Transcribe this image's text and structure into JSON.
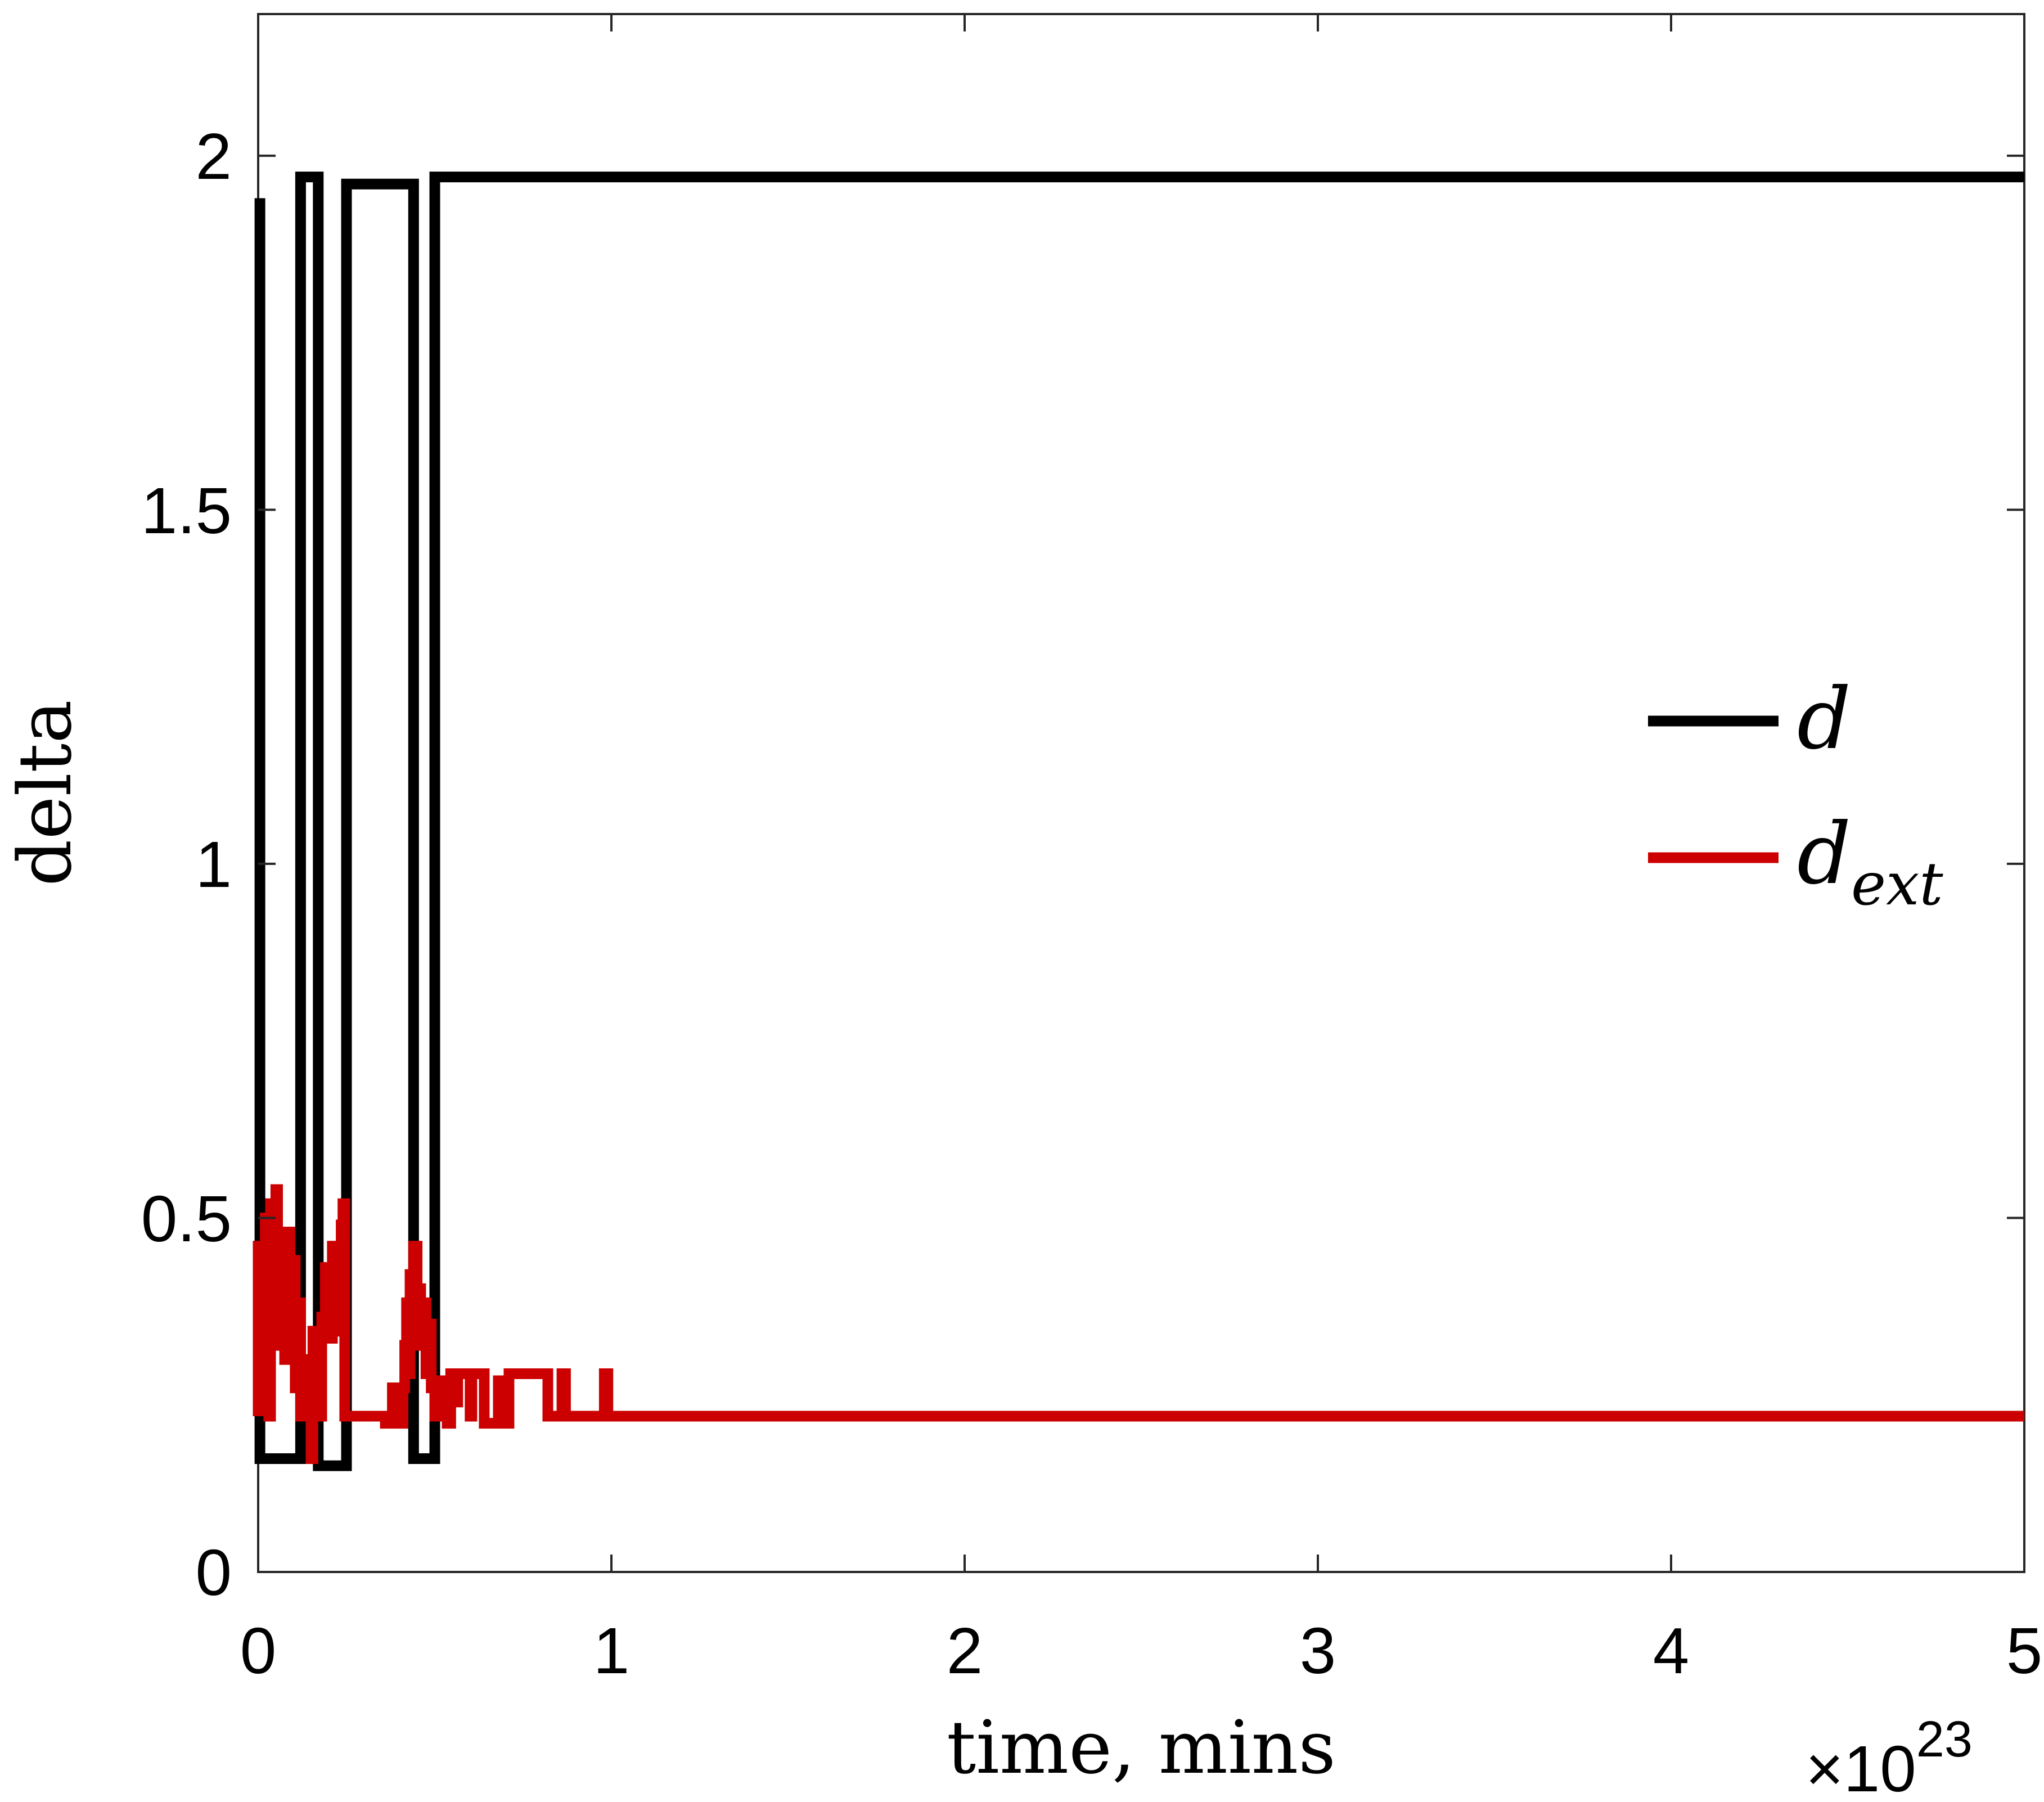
{
  "chart_data": {
    "type": "line",
    "title": "",
    "xlabel": "time, mins",
    "ylabel": "delta",
    "x_multiplier": "×10^23",
    "x_multiplier_base": "×10",
    "x_multiplier_exp": "23",
    "xlim": [
      0,
      5
    ],
    "ylim": [
      0,
      2.2
    ],
    "x_ticks": [
      0,
      1,
      2,
      3,
      4,
      5
    ],
    "x_tick_labels": [
      "0",
      "1",
      "2",
      "3",
      "4",
      "5"
    ],
    "y_ticks": [
      0,
      0.5,
      1,
      1.5,
      2
    ],
    "y_tick_labels": [
      "0",
      "0.5",
      "1",
      "1.5",
      "2"
    ],
    "grid": false,
    "legend_position": "right",
    "series": [
      {
        "name": "d",
        "color": "#000000",
        "points": [
          [
            0.005,
            1.94
          ],
          [
            0.005,
            0.16
          ],
          [
            0.12,
            0.16
          ],
          [
            0.12,
            1.97
          ],
          [
            0.17,
            1.97
          ],
          [
            0.17,
            0.15
          ],
          [
            0.25,
            0.15
          ],
          [
            0.25,
            1.96
          ],
          [
            0.44,
            1.96
          ],
          [
            0.44,
            0.16
          ],
          [
            0.5,
            0.16
          ],
          [
            0.5,
            1.97
          ],
          [
            5.0,
            1.97
          ]
        ]
      },
      {
        "name": "d_ext",
        "label_main": "d",
        "label_sub": "ext",
        "color": "#cc0000",
        "points": [
          [
            0.0,
            0.22
          ],
          [
            0.0,
            0.46
          ],
          [
            0.01,
            0.46
          ],
          [
            0.01,
            0.28
          ],
          [
            0.02,
            0.28
          ],
          [
            0.02,
            0.5
          ],
          [
            0.03,
            0.5
          ],
          [
            0.03,
            0.22
          ],
          [
            0.035,
            0.22
          ],
          [
            0.035,
            0.52
          ],
          [
            0.045,
            0.52
          ],
          [
            0.045,
            0.36
          ],
          [
            0.05,
            0.36
          ],
          [
            0.05,
            0.54
          ],
          [
            0.055,
            0.54
          ],
          [
            0.055,
            0.32
          ],
          [
            0.065,
            0.32
          ],
          [
            0.065,
            0.43
          ],
          [
            0.075,
            0.43
          ],
          [
            0.075,
            0.3
          ],
          [
            0.08,
            0.3
          ],
          [
            0.08,
            0.48
          ],
          [
            0.09,
            0.48
          ],
          [
            0.09,
            0.32
          ],
          [
            0.095,
            0.32
          ],
          [
            0.095,
            0.44
          ],
          [
            0.105,
            0.44
          ],
          [
            0.105,
            0.26
          ],
          [
            0.115,
            0.26
          ],
          [
            0.115,
            0.38
          ],
          [
            0.12,
            0.38
          ],
          [
            0.12,
            0.22
          ],
          [
            0.14,
            0.22
          ],
          [
            0.14,
            0.3
          ],
          [
            0.145,
            0.3
          ],
          [
            0.145,
            0.22
          ],
          [
            0.15,
            0.22
          ],
          [
            0.15,
            0.16
          ],
          [
            0.155,
            0.16
          ],
          [
            0.155,
            0.34
          ],
          [
            0.16,
            0.34
          ],
          [
            0.16,
            0.22
          ],
          [
            0.17,
            0.22
          ],
          [
            0.17,
            0.3
          ],
          [
            0.175,
            0.3
          ],
          [
            0.175,
            0.22
          ],
          [
            0.18,
            0.22
          ],
          [
            0.18,
            0.36
          ],
          [
            0.19,
            0.36
          ],
          [
            0.19,
            0.43
          ],
          [
            0.2,
            0.43
          ],
          [
            0.2,
            0.33
          ],
          [
            0.21,
            0.33
          ],
          [
            0.21,
            0.46
          ],
          [
            0.22,
            0.46
          ],
          [
            0.22,
            0.34
          ],
          [
            0.23,
            0.34
          ],
          [
            0.23,
            0.41
          ],
          [
            0.235,
            0.41
          ],
          [
            0.235,
            0.49
          ],
          [
            0.24,
            0.49
          ],
          [
            0.24,
            0.52
          ],
          [
            0.245,
            0.52
          ],
          [
            0.245,
            0.22
          ],
          [
            0.36,
            0.22
          ],
          [
            0.36,
            0.21
          ],
          [
            0.37,
            0.21
          ],
          [
            0.37,
            0.22
          ],
          [
            0.38,
            0.22
          ],
          [
            0.38,
            0.26
          ],
          [
            0.385,
            0.26
          ],
          [
            0.385,
            0.22
          ],
          [
            0.39,
            0.22
          ],
          [
            0.39,
            0.21
          ],
          [
            0.41,
            0.21
          ],
          [
            0.41,
            0.26
          ],
          [
            0.415,
            0.26
          ],
          [
            0.415,
            0.32
          ],
          [
            0.42,
            0.32
          ],
          [
            0.42,
            0.38
          ],
          [
            0.425,
            0.38
          ],
          [
            0.425,
            0.28
          ],
          [
            0.43,
            0.28
          ],
          [
            0.43,
            0.42
          ],
          [
            0.435,
            0.42
          ],
          [
            0.435,
            0.34
          ],
          [
            0.44,
            0.34
          ],
          [
            0.44,
            0.46
          ],
          [
            0.45,
            0.46
          ],
          [
            0.45,
            0.36
          ],
          [
            0.455,
            0.36
          ],
          [
            0.455,
            0.4
          ],
          [
            0.46,
            0.4
          ],
          [
            0.46,
            0.32
          ],
          [
            0.47,
            0.32
          ],
          [
            0.47,
            0.38
          ],
          [
            0.475,
            0.38
          ],
          [
            0.475,
            0.28
          ],
          [
            0.48,
            0.28
          ],
          [
            0.48,
            0.35
          ],
          [
            0.49,
            0.35
          ],
          [
            0.49,
            0.26
          ],
          [
            0.5,
            0.26
          ],
          [
            0.5,
            0.22
          ],
          [
            0.51,
            0.22
          ],
          [
            0.51,
            0.27
          ],
          [
            0.52,
            0.27
          ],
          [
            0.52,
            0.22
          ],
          [
            0.53,
            0.22
          ],
          [
            0.53,
            0.26
          ],
          [
            0.535,
            0.26
          ],
          [
            0.535,
            0.21
          ],
          [
            0.545,
            0.21
          ],
          [
            0.545,
            0.28
          ],
          [
            0.555,
            0.28
          ],
          [
            0.555,
            0.24
          ],
          [
            0.565,
            0.24
          ],
          [
            0.565,
            0.28
          ],
          [
            0.6,
            0.28
          ],
          [
            0.6,
            0.22
          ],
          [
            0.605,
            0.22
          ],
          [
            0.605,
            0.28
          ],
          [
            0.64,
            0.28
          ],
          [
            0.64,
            0.21
          ],
          [
            0.68,
            0.21
          ],
          [
            0.68,
            0.27
          ],
          [
            0.7,
            0.27
          ],
          [
            0.7,
            0.21
          ],
          [
            0.71,
            0.21
          ],
          [
            0.71,
            0.28
          ],
          [
            0.82,
            0.28
          ],
          [
            0.82,
            0.22
          ],
          [
            0.86,
            0.22
          ],
          [
            0.86,
            0.28
          ],
          [
            0.87,
            0.28
          ],
          [
            0.87,
            0.22
          ],
          [
            0.98,
            0.22
          ],
          [
            0.98,
            0.28
          ],
          [
            0.99,
            0.28
          ],
          [
            0.99,
            0.22
          ],
          [
            5.0,
            0.22
          ]
        ]
      }
    ]
  }
}
